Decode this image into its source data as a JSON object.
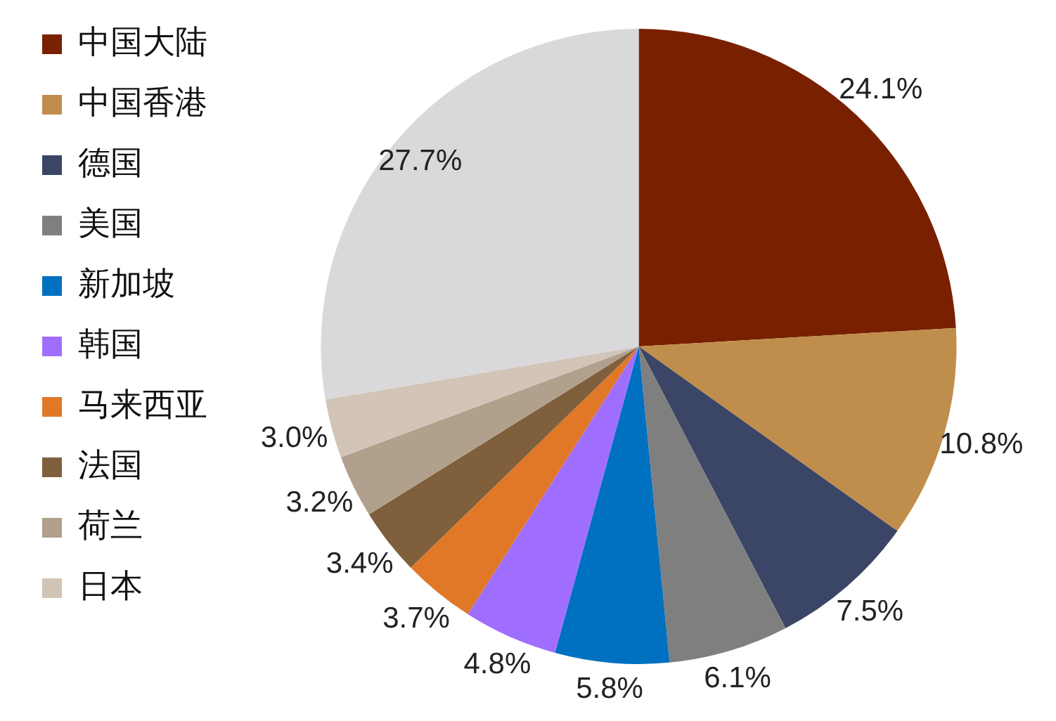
{
  "chart_data": {
    "type": "pie",
    "categories": [
      "中国大陆",
      "中国香港",
      "德国",
      "美国",
      "新加坡",
      "韩国",
      "马来西亚",
      "法国",
      "荷兰",
      "日本",
      null
    ],
    "values": [
      24.1,
      10.8,
      7.5,
      6.1,
      5.8,
      4.8,
      3.7,
      3.4,
      3.2,
      3.0,
      27.7
    ],
    "colors": [
      "#782000",
      "#c08e4c",
      "#3b4566",
      "#7f7f7f",
      "#0070c0",
      "#a06eff",
      "#e07828",
      "#7f5f3c",
      "#b0a08c",
      "#d2c4b6",
      "#d9d9db"
    ],
    "value_labels": [
      "24.1%",
      "10.8%",
      "7.5%",
      "6.1%",
      "5.8%",
      "4.8%",
      "3.7%",
      "3.4%",
      "3.2%",
      "3.0%",
      "27.7%"
    ],
    "legend": "left"
  }
}
